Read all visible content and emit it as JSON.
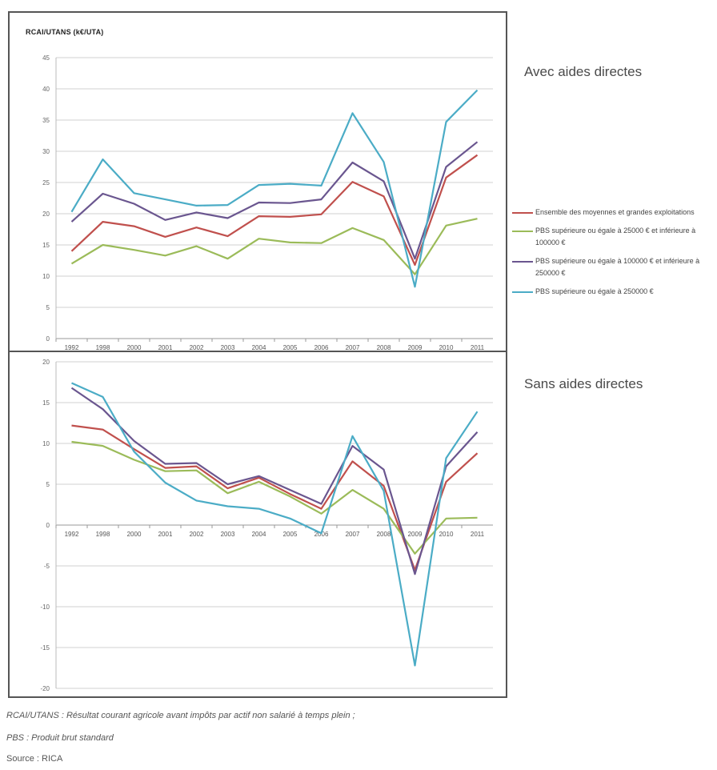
{
  "chart_data": [
    {
      "type": "line",
      "panel_title": "Avec aides directes",
      "ylabel": "RCAI/UTANS (k€/UTA)",
      "ylim": [
        0,
        45
      ],
      "yticks": [
        0,
        5,
        10,
        15,
        20,
        25,
        30,
        35,
        40,
        45
      ],
      "grid": true,
      "categories": [
        "1992",
        "1998",
        "2000",
        "2001",
        "2002",
        "2003",
        "2004",
        "2005",
        "2006",
        "2007",
        "2008",
        "2009",
        "2010",
        "2011"
      ],
      "series": [
        {
          "name": "Ensemble des moyennes et grandes exploitations",
          "color": "#c0504d",
          "values": [
            14,
            18.7,
            18,
            16.3,
            17.8,
            16.4,
            19.6,
            19.5,
            19.9,
            25.1,
            22.8,
            11.8,
            25.8,
            29.4
          ]
        },
        {
          "name": "PBS supérieure ou égale à 25000 € et inférieure à 100000 €",
          "color": "#9bbb59",
          "values": [
            12,
            15,
            14.2,
            13.3,
            14.8,
            12.8,
            16,
            15.4,
            15.3,
            17.7,
            15.8,
            10.3,
            18.1,
            19.2
          ]
        },
        {
          "name": "PBS supérieure ou égale à 100000 € et inférieure à 250000 €",
          "color": "#6a568f",
          "values": [
            18.7,
            23.2,
            21.6,
            19,
            20.2,
            19.3,
            21.8,
            21.7,
            22.3,
            28.2,
            25.2,
            12.8,
            27.5,
            31.5
          ]
        },
        {
          "name": "PBS supérieure ou égale à 250000 €",
          "color": "#4bacc6",
          "values": [
            20.3,
            28.7,
            23.3,
            22.3,
            21.3,
            21.4,
            24.6,
            24.8,
            24.5,
            36.1,
            28.3,
            8.3,
            34.7,
            39.8
          ]
        }
      ]
    },
    {
      "type": "line",
      "panel_title": "Sans aides directes",
      "ylim": [
        -20,
        20
      ],
      "yticks": [
        -20,
        -15,
        -10,
        -5,
        0,
        5,
        10,
        15,
        20
      ],
      "grid": true,
      "categories": [
        "1992",
        "1998",
        "2000",
        "2001",
        "2002",
        "2003",
        "2004",
        "2005",
        "2006",
        "2007",
        "2008",
        "2009",
        "2010",
        "2011"
      ],
      "series": [
        {
          "name": "Ensemble des moyennes et grandes exploitations",
          "color": "#c0504d",
          "values": [
            12.2,
            11.7,
            9.3,
            7,
            7.2,
            4.5,
            5.8,
            3.8,
            2,
            7.8,
            4.8,
            -5.5,
            5.3,
            8.8
          ]
        },
        {
          "name": "PBS supérieure ou égale à 25000 € et inférieure à 100000 €",
          "color": "#9bbb59",
          "values": [
            10.2,
            9.7,
            8,
            6.6,
            6.7,
            3.9,
            5.3,
            3.5,
            1.4,
            4.3,
            2,
            -3.5,
            0.8,
            0.9
          ]
        },
        {
          "name": "PBS supérieure ou égale à 100000 € et inférieure à 250000 €",
          "color": "#6a568f",
          "values": [
            16.8,
            14.2,
            10.3,
            7.5,
            7.6,
            5,
            6,
            4.3,
            2.6,
            9.7,
            6.8,
            -6,
            7.2,
            11.4
          ]
        },
        {
          "name": "PBS supérieure ou égale à 250000 €",
          "color": "#4bacc6",
          "values": [
            17.4,
            15.7,
            9,
            5.2,
            3,
            2.3,
            2,
            0.8,
            -1,
            10.9,
            4.2,
            -17.2,
            8.2,
            13.9
          ]
        }
      ]
    }
  ],
  "legend": [
    {
      "label": "Ensemble des moyennes et grandes exploitations",
      "color": "#c0504d"
    },
    {
      "label": "PBS supérieure ou égale à 25000 € et inférieure à 100000 €",
      "color": "#9bbb59"
    },
    {
      "label": "PBS supérieure ou égale à 100000 € et inférieure à 250000 €",
      "color": "#6a568f"
    },
    {
      "label": "PBS supérieure ou égale à 250000 €",
      "color": "#4bacc6"
    }
  ],
  "notes": {
    "rcai": "RCAI/UTANS : Résultat courant agricole avant impôts par actif non salarié à temps plein ;",
    "pbs": "PBS : Produit brut standard",
    "source": "Source : RICA"
  }
}
